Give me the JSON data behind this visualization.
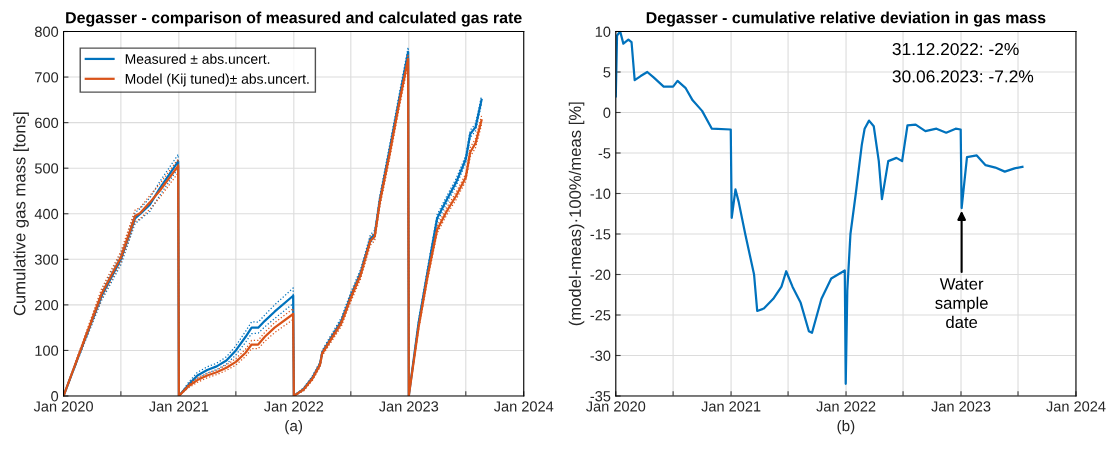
{
  "chart_data": [
    {
      "type": "line",
      "title": "Degasser - comparison of measured and calculated gas rate",
      "xlabel": "(a)",
      "ylabel": "Cumulative gas mass [tons]",
      "xlim": [
        "2020-01-01",
        "2024-01-01"
      ],
      "xticks": [
        {
          "value": "2020-01-01",
          "label": "Jan 2020"
        },
        {
          "value": "2020-07-01",
          "label": null
        },
        {
          "value": "2021-01-01",
          "label": "Jan 2021"
        },
        {
          "value": "2021-07-01",
          "label": null
        },
        {
          "value": "2022-01-01",
          "label": "Jan 2022"
        },
        {
          "value": "2022-07-01",
          "label": null
        },
        {
          "value": "2023-01-01",
          "label": "Jan 2023"
        },
        {
          "value": "2023-07-01",
          "label": null
        },
        {
          "value": "2024-01-01",
          "label": "Jan 2024"
        }
      ],
      "ylim": [
        0,
        800
      ],
      "yticks": [
        0,
        100,
        200,
        300,
        400,
        500,
        600,
        700,
        800
      ],
      "grid": true,
      "legend": "top left",
      "line_style": "solid",
      "marker": "none",
      "x": [
        "2020-01-01",
        "2020-03-01",
        "2020-05-01",
        "2020-07-01",
        "2020-08-15",
        "2020-09-01",
        "2020-10-01",
        "2020-11-01",
        "2020-12-30",
        "2021-01-01",
        "2021-02-01",
        "2021-03-01",
        "2021-04-01",
        "2021-05-01",
        "2021-06-01",
        "2021-07-01",
        "2021-08-01",
        "2021-08-20",
        "2021-09-10",
        "2021-10-01",
        "2021-11-01",
        "2021-12-30",
        "2022-01-01",
        "2022-02-01",
        "2022-03-01",
        "2022-03-25",
        "2022-04-01",
        "2022-05-01",
        "2022-06-01",
        "2022-07-01",
        "2022-08-01",
        "2022-09-01",
        "2022-09-15",
        "2022-10-01",
        "2022-11-01",
        "2022-12-01",
        "2022-12-30",
        "2023-01-01",
        "2023-02-01",
        "2023-03-01",
        "2023-04-01",
        "2023-05-01",
        "2023-06-01",
        "2023-07-01",
        "2023-07-15",
        "2023-08-01",
        "2023-08-20"
      ],
      "series": [
        {
          "name": "Measured ± abs.uncert.",
          "color": "#0072bd",
          "line_style": "solid",
          "values": [
            0,
            110,
            220,
            300,
            390,
            400,
            420,
            455,
            515,
            0,
            25,
            45,
            57,
            65,
            78,
            100,
            130,
            150,
            150,
            165,
            185,
            220,
            0,
            15,
            40,
            70,
            95,
            130,
            165,
            220,
            270,
            345,
            355,
            430,
            540,
            650,
            755,
            0,
            160,
            270,
            390,
            430,
            470,
            520,
            575,
            590,
            650
          ]
        },
        {
          "color": "#0072bd",
          "line_style": "dotted",
          "values": [
            0,
            105,
            210,
            288,
            378,
            388,
            405,
            440,
            500,
            0,
            20,
            38,
            50,
            58,
            70,
            90,
            118,
            137,
            138,
            152,
            170,
            203,
            0,
            12,
            36,
            65,
            90,
            124,
            158,
            212,
            262,
            336,
            346,
            420,
            530,
            640,
            745,
            0,
            154,
            262,
            382,
            422,
            462,
            512,
            567,
            582,
            641
          ]
        },
        {
          "color": "#0072bd",
          "line_style": "dotted",
          "values": [
            0,
            115,
            230,
            312,
            402,
            412,
            435,
            470,
            530,
            0,
            30,
            52,
            64,
            72,
            86,
            110,
            142,
            163,
            162,
            178,
            200,
            237,
            0,
            18,
            44,
            75,
            100,
            136,
            172,
            228,
            278,
            354,
            364,
            440,
            550,
            660,
            765,
            0,
            166,
            278,
            398,
            438,
            478,
            528,
            583,
            598,
            659
          ]
        },
        {
          "name": "Model (Kij tuned)± abs.uncert.",
          "color": "#d95319",
          "line_style": "solid",
          "values": [
            0,
            112,
            225,
            305,
            395,
            402,
            425,
            450,
            505,
            0,
            22,
            35,
            45,
            52,
            62,
            75,
            95,
            113,
            113,
            130,
            150,
            180,
            0,
            14,
            38,
            68,
            93,
            126,
            160,
            215,
            265,
            340,
            350,
            425,
            530,
            640,
            740,
            0,
            150,
            260,
            365,
            405,
            440,
            480,
            535,
            555,
            605
          ]
        },
        {
          "color": "#d95319",
          "line_style": "dotted",
          "values": [
            0,
            107,
            214,
            293,
            382,
            390,
            410,
            435,
            490,
            0,
            18,
            30,
            40,
            47,
            56,
            68,
            87,
            104,
            104,
            120,
            139,
            168,
            0,
            11,
            34,
            63,
            88,
            120,
            153,
            207,
            257,
            331,
            341,
            415,
            520,
            630,
            730,
            0,
            144,
            252,
            357,
            397,
            432,
            472,
            525,
            545,
            595
          ]
        },
        {
          "color": "#d95319",
          "line_style": "dotted",
          "values": [
            0,
            117,
            236,
            317,
            408,
            414,
            440,
            465,
            520,
            0,
            26,
            40,
            50,
            57,
            68,
            82,
            103,
            122,
            122,
            140,
            161,
            192,
            0,
            17,
            42,
            73,
            98,
            132,
            167,
            223,
            273,
            349,
            359,
            435,
            540,
            650,
            750,
            0,
            156,
            268,
            373,
            413,
            448,
            488,
            545,
            565,
            615
          ]
        }
      ]
    },
    {
      "type": "line",
      "title": "Degasser - cumulative relative deviation in gas mass",
      "xlabel": "(b)",
      "ylabel": "(model-meas)·100%/meas [%]",
      "xlim": [
        "2020-01-01",
        "2024-01-01"
      ],
      "xticks": [
        {
          "value": "2020-01-01",
          "label": "Jan 2020"
        },
        {
          "value": "2020-07-01",
          "label": null
        },
        {
          "value": "2021-01-01",
          "label": "Jan 2021"
        },
        {
          "value": "2021-07-01",
          "label": null
        },
        {
          "value": "2022-01-01",
          "label": "Jan 2022"
        },
        {
          "value": "2022-07-01",
          "label": null
        },
        {
          "value": "2023-01-01",
          "label": "Jan 2023"
        },
        {
          "value": "2023-07-01",
          "label": null
        },
        {
          "value": "2024-01-01",
          "label": "Jan 2024"
        }
      ],
      "ylim": [
        -35,
        10
      ],
      "yticks": [
        -35,
        -30,
        -25,
        -20,
        -15,
        -10,
        -5,
        0,
        5,
        10
      ],
      "grid": true,
      "line_style": "solid",
      "marker": "none",
      "annotations": [
        "31.12.2022: -2%",
        "30.06.2023: -7.2%",
        {
          "text": "Water\nsample\ndate",
          "x": "2023-01-03",
          "y": -11.8
        }
      ],
      "x": [
        "2020-01-01",
        "2020-01-05",
        "2020-01-15",
        "2020-01-25",
        "2020-02-10",
        "2020-02-20",
        "2020-03-01",
        "2020-03-20",
        "2020-04-10",
        "2020-05-01",
        "2020-06-01",
        "2020-07-01",
        "2020-07-15",
        "2020-08-10",
        "2020-09-01",
        "2020-10-01",
        "2020-11-01",
        "2020-12-31",
        "2021-01-03",
        "2021-01-15",
        "2021-01-25",
        "2021-02-15",
        "2021-03-15",
        "2021-03-25",
        "2021-04-15",
        "2021-05-15",
        "2021-06-10",
        "2021-06-25",
        "2021-07-15",
        "2021-08-10",
        "2021-09-05",
        "2021-09-15",
        "2021-10-15",
        "2021-11-15",
        "2021-12-28",
        "2021-12-31",
        "2022-01-05",
        "2022-01-15",
        "2022-02-01",
        "2022-02-20",
        "2022-03-01",
        "2022-03-15",
        "2022-03-30",
        "2022-04-15",
        "2022-04-25",
        "2022-05-15",
        "2022-06-10",
        "2022-06-28",
        "2022-07-15",
        "2022-08-10",
        "2022-09-10",
        "2022-10-15",
        "2022-11-15",
        "2022-12-15",
        "2022-12-31",
        "2023-01-03",
        "2023-01-20",
        "2023-02-20",
        "2023-03-20",
        "2023-04-20",
        "2023-05-20",
        "2023-06-20",
        "2023-07-15"
      ],
      "series": [
        {
          "color": "#0072bd",
          "values": [
            2,
            9.5,
            10,
            8.5,
            9,
            8.7,
            4,
            4.5,
            5,
            4.3,
            3.2,
            3.2,
            3.9,
            3,
            1.5,
            0.2,
            -2,
            -2.1,
            -13,
            -9.5,
            -11,
            -15,
            -20,
            -24.5,
            -24.2,
            -23,
            -21.5,
            -19.6,
            -21.5,
            -23.5,
            -27,
            -27.2,
            -23,
            -20.5,
            -19.5,
            -33.5,
            -22,
            -15,
            -10,
            -4,
            -2,
            -1,
            -1.7,
            -6,
            -10.7,
            -6,
            -5.6,
            -6,
            -1.6,
            -1.5,
            -2.3,
            -2,
            -2.5,
            -2,
            -2.1,
            -11.8,
            -5.5,
            -5.3,
            -6.5,
            -6.8,
            -7.3,
            -6.9,
            -6.7
          ]
        }
      ]
    }
  ]
}
